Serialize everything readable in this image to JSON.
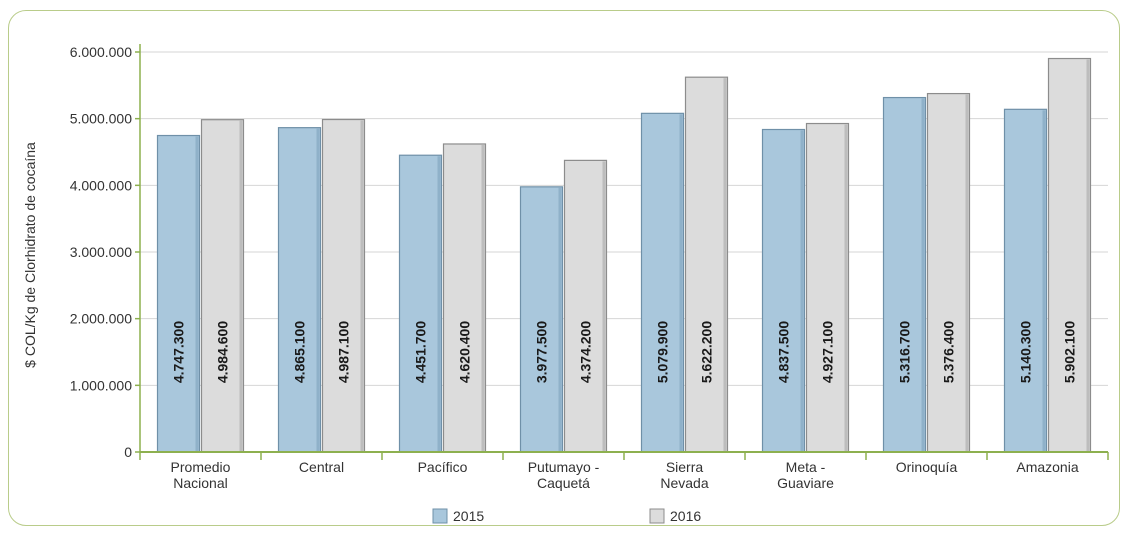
{
  "chart_data": {
    "type": "bar",
    "ylabel": "$ COL/Kg de Clorhidrato de cocaína",
    "ylim": [
      0,
      6000000
    ],
    "yticks": [
      "0",
      "1.000.000",
      "2.000.000",
      "3.000.000",
      "4.000.000",
      "5.000.000",
      "6.000.000"
    ],
    "categories": [
      [
        "Promedio",
        "Nacional"
      ],
      [
        "Central"
      ],
      [
        "Pacífico"
      ],
      [
        "Putumayo -",
        "Caquetá"
      ],
      [
        "Sierra",
        "Nevada"
      ],
      [
        "Meta -",
        "Guaviare"
      ],
      [
        "Orinoquía"
      ],
      [
        "Amazonia"
      ]
    ],
    "series": [
      {
        "name": "2015",
        "color": "#a9c7dc",
        "values": [
          4747300,
          4865100,
          4451700,
          3977500,
          5079900,
          4837500,
          5316700,
          5140300
        ],
        "labels": [
          "4.747.300",
          "4.865.100",
          "4.451.700",
          "3.977.500",
          "5.079.900",
          "4.837.500",
          "5.316.700",
          "5.140.300"
        ]
      },
      {
        "name": "2016",
        "color": "#dcdcdc",
        "values": [
          4984600,
          4987100,
          4620400,
          4374200,
          5622200,
          4927100,
          5376400,
          5902100
        ],
        "labels": [
          "4.984.600",
          "4.987.100",
          "4.620.400",
          "4.374.200",
          "5.622.200",
          "4.927.100",
          "5.376.400",
          "5.902.100"
        ]
      }
    ],
    "grid": true,
    "legend": "bottom"
  }
}
